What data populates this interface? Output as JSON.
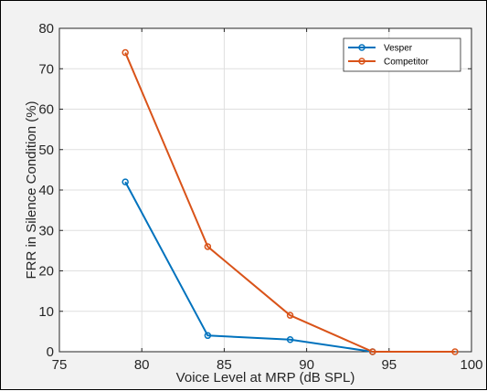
{
  "chart_data": {
    "type": "line",
    "title": "",
    "xlabel": "Voice Level at MRP (dB SPL)",
    "ylabel": "FRR in Silence Condition (%)",
    "xlim": [
      75,
      100
    ],
    "ylim": [
      0,
      80
    ],
    "xticks": [
      75,
      80,
      85,
      90,
      95,
      100
    ],
    "yticks": [
      0,
      10,
      20,
      30,
      40,
      50,
      60,
      70,
      80
    ],
    "grid": true,
    "legend_position": "top-right",
    "series": [
      {
        "name": "Vesper",
        "color": "#0072bd",
        "marker": "circle",
        "x": [
          79,
          84,
          89,
          94
        ],
        "y": [
          42,
          4,
          3,
          0
        ]
      },
      {
        "name": "Competitor",
        "color": "#d95319",
        "marker": "circle",
        "x": [
          79,
          84,
          89,
          94,
          99
        ],
        "y": [
          74,
          26,
          9,
          0,
          0
        ]
      }
    ]
  }
}
